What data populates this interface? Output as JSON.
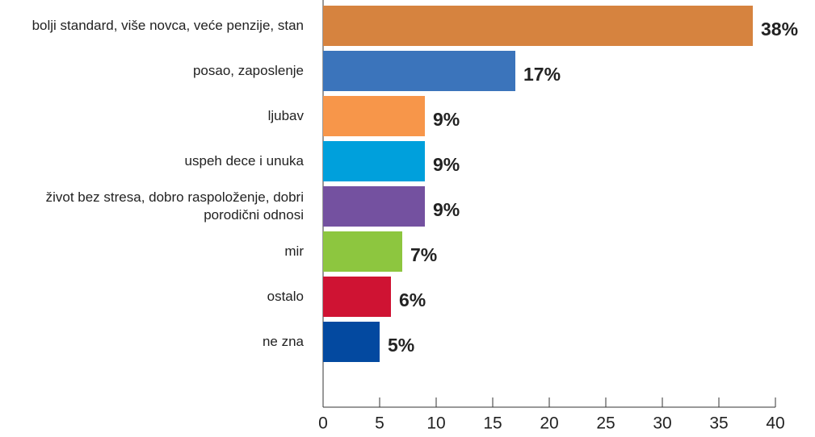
{
  "chart_data": {
    "type": "bar",
    "orientation": "horizontal",
    "categories": [
      "bolji standard, više novca, veće penzije, stan",
      "posao, zaposlenje",
      "ljubav",
      "uspeh dece i unuka",
      "život bez stresa, dobro raspoloženje, dobri porodični odnosi",
      "mir",
      "ostalo",
      "ne zna"
    ],
    "values": [
      38,
      17,
      9,
      9,
      9,
      7,
      6,
      5
    ],
    "value_labels": [
      "38%",
      "17%",
      "9%",
      "9%",
      "9%",
      "7%",
      "6%",
      "5%"
    ],
    "colors": [
      "#d6833f",
      "#3b74bb",
      "#f7964a",
      "#00a0dc",
      "#7451a0",
      "#8dc63f",
      "#cf1333",
      "#0349a0"
    ],
    "xlim": [
      0,
      40
    ],
    "xticks": [
      0,
      5,
      10,
      15,
      20,
      25,
      30,
      35,
      40
    ]
  }
}
